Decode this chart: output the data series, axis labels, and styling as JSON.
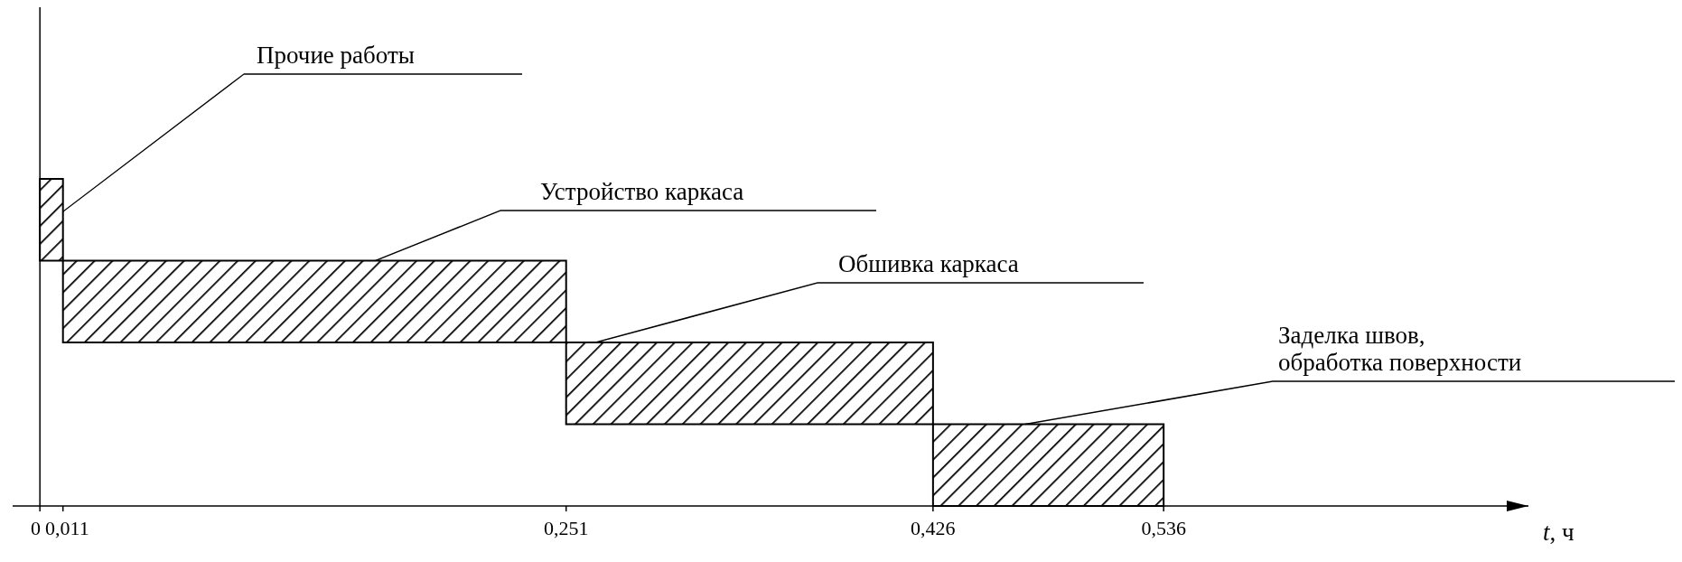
{
  "chart_data": {
    "type": "bar",
    "orientation": "horizontal",
    "categories": [
      null,
      null,
      null,
      null
    ],
    "annotations": [
      "Прочие работы",
      "Устройство каркаса",
      "Обшивка каркаса",
      "Заделка швов, обработка поверхности"
    ],
    "base": [
      0,
      0.011,
      0.251,
      0.426
    ],
    "values": [
      0.011,
      0.24,
      0.175,
      0.11
    ],
    "color": "#000000",
    "xlim": [
      -0.013,
      0.71
    ],
    "xticks": [
      {
        "value": 0,
        "label": "0"
      },
      {
        "value": 0.011,
        "label": "0,011"
      },
      {
        "value": 0.251,
        "label": "0,251"
      },
      {
        "value": 0.426,
        "label": "0,426"
      },
      {
        "value": 0.536,
        "label": "0,536"
      }
    ],
    "xlabel": "t, ч"
  }
}
